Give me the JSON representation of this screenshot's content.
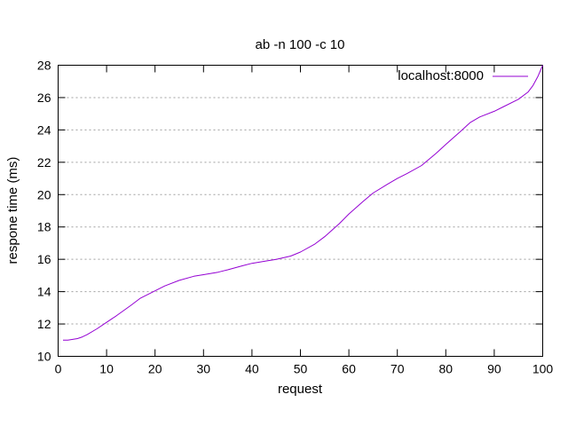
{
  "chart_data": {
    "type": "line",
    "title": "ab -n 100 -c 10",
    "xlabel": "request",
    "ylabel": "respone time (ms)",
    "xlim": [
      0,
      100
    ],
    "ylim": [
      10,
      28
    ],
    "xticks": [
      0,
      10,
      20,
      30,
      40,
      50,
      60,
      70,
      80,
      90,
      100
    ],
    "yticks": [
      10,
      12,
      14,
      16,
      18,
      20,
      22,
      24,
      26,
      28
    ],
    "grid": "horizontal dotted",
    "legend_position": "top-right",
    "series": [
      {
        "name": "localhost:8000",
        "color": "#9400d3",
        "x": [
          1,
          2,
          3,
          4,
          5,
          6,
          8,
          10,
          12,
          15,
          17,
          20,
          22,
          25,
          28,
          30,
          33,
          35,
          38,
          40,
          43,
          45,
          48,
          50,
          53,
          55,
          58,
          60,
          63,
          65,
          68,
          70,
          72,
          75,
          78,
          80,
          83,
          85,
          87,
          90,
          92,
          95,
          97,
          98,
          99,
          100
        ],
        "values": [
          11.0,
          11.0,
          11.05,
          11.1,
          11.2,
          11.35,
          11.7,
          12.1,
          12.5,
          13.15,
          13.6,
          14.05,
          14.35,
          14.7,
          14.95,
          15.05,
          15.2,
          15.35,
          15.6,
          15.75,
          15.9,
          16.0,
          16.2,
          16.45,
          16.95,
          17.4,
          18.2,
          18.8,
          19.6,
          20.1,
          20.65,
          21.0,
          21.3,
          21.8,
          22.55,
          23.1,
          23.9,
          24.45,
          24.8,
          25.15,
          25.45,
          25.9,
          26.35,
          26.75,
          27.3,
          28.0
        ]
      }
    ]
  }
}
